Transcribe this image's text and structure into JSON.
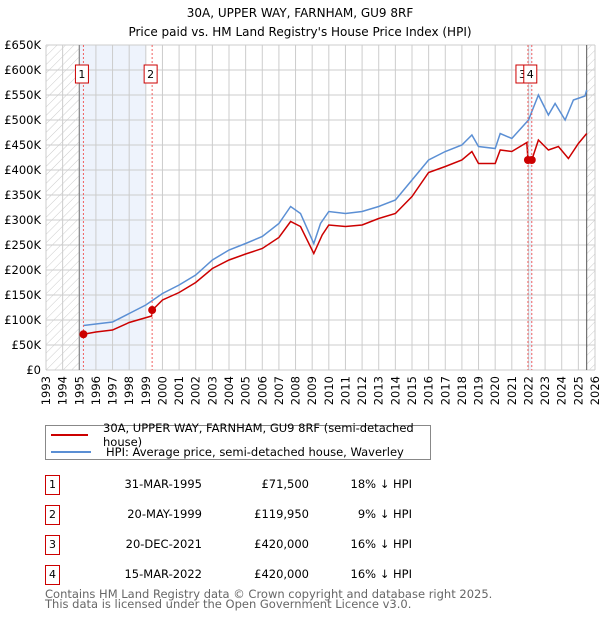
{
  "chart_data": {
    "type": "line",
    "title": "30A, UPPER WAY, FARNHAM, GU9 8RF",
    "subtitle": "Price paid vs. HM Land Registry's House Price Index (HPI)",
    "xlabel": "",
    "ylabel": "",
    "xlim": [
      1993,
      2026
    ],
    "ylim": [
      0,
      650000
    ],
    "y_ticks": [
      "£0",
      "£50K",
      "£100K",
      "£150K",
      "£200K",
      "£250K",
      "£300K",
      "£350K",
      "£400K",
      "£450K",
      "£500K",
      "£550K",
      "£600K",
      "£650K"
    ],
    "x_ticks": [
      "1993",
      "1994",
      "1995",
      "1996",
      "1997",
      "1998",
      "1999",
      "2000",
      "2001",
      "2002",
      "2003",
      "2004",
      "2005",
      "2006",
      "2007",
      "2008",
      "2009",
      "2010",
      "2011",
      "2012",
      "2013",
      "2014",
      "2015",
      "2016",
      "2017",
      "2018",
      "2019",
      "2020",
      "2021",
      "2022",
      "2023",
      "2024",
      "2025",
      "2026"
    ],
    "grid": true,
    "series": [
      {
        "name": "30A, UPPER WAY, FARNHAM, GU9 8RF (semi-detached house)",
        "color": "#cc0000",
        "x": [
          1995.25,
          1996,
          1997,
          1998,
          1999.35,
          1999.4,
          2000,
          2001,
          2002,
          2003,
          2004,
          2005,
          2006,
          2007,
          2007.7,
          2008.3,
          2009.1,
          2009.6,
          2010,
          2011,
          2012,
          2013,
          2014,
          2015,
          2016,
          2017,
          2018,
          2018.6,
          2019,
          2020,
          2020.3,
          2021,
          2021.9,
          2021.97,
          2022.2,
          2022.6,
          2023.2,
          2023.8,
          2024.4,
          2025,
          2025.5
        ],
        "y": [
          71500,
          76000,
          80000,
          95000,
          108000,
          119950,
          140000,
          155000,
          175000,
          203000,
          220000,
          232000,
          243000,
          265000,
          297000,
          287000,
          233000,
          270000,
          290000,
          287000,
          290000,
          303000,
          313000,
          347000,
          395000,
          407000,
          420000,
          437000,
          413000,
          413000,
          440000,
          437000,
          455000,
          420000,
          420000,
          460000,
          440000,
          447000,
          423000,
          453000,
          473000
        ]
      },
      {
        "name": "HPI: Average price, semi-detached house, Waverley",
        "color": "#5b8fd4",
        "x": [
          1995.25,
          1996,
          1997,
          1998,
          1999,
          2000,
          2001,
          2002,
          2003,
          2004,
          2005,
          2006,
          2007,
          2007.7,
          2008.3,
          2009.1,
          2009.5,
          2010,
          2011,
          2012,
          2013,
          2014,
          2015,
          2016,
          2017,
          2018,
          2018.6,
          2019,
          2020,
          2020.3,
          2021,
          2022,
          2022.6,
          2023.2,
          2023.6,
          2024.2,
          2024.7,
          2025.4,
          2025.5
        ],
        "y": [
          89000,
          92000,
          96000,
          113000,
          130000,
          153000,
          170000,
          190000,
          220000,
          240000,
          253000,
          267000,
          293000,
          327000,
          313000,
          253000,
          293000,
          317000,
          313000,
          317000,
          327000,
          340000,
          380000,
          420000,
          437000,
          450000,
          470000,
          447000,
          443000,
          473000,
          463000,
          500000,
          550000,
          510000,
          533000,
          500000,
          540000,
          548000,
          560000
        ]
      }
    ],
    "transactions": [
      {
        "label": "1",
        "date": "31-MAR-1995",
        "x": 1995.25,
        "price": "£71,500",
        "value": 71500,
        "hpi": "18% ↓ HPI"
      },
      {
        "label": "2",
        "date": "20-MAY-1999",
        "x": 1999.38,
        "price": "£119,950",
        "value": 119950,
        "hpi": "9% ↓ HPI"
      },
      {
        "label": "3",
        "date": "20-DEC-2021",
        "x": 2021.97,
        "price": "£420,000",
        "value": 420000,
        "hpi": "16% ↓ HPI"
      },
      {
        "label": "4",
        "date": "15-MAR-2022",
        "x": 2022.2,
        "price": "£420,000",
        "value": 420000,
        "hpi": "16% ↓ HPI"
      }
    ],
    "legend_position": "below"
  },
  "footer": {
    "line1": "Contains HM Land Registry data © Crown copyright and database right 2025.",
    "line2": "This data is licensed under the Open Government Licence v3.0."
  }
}
